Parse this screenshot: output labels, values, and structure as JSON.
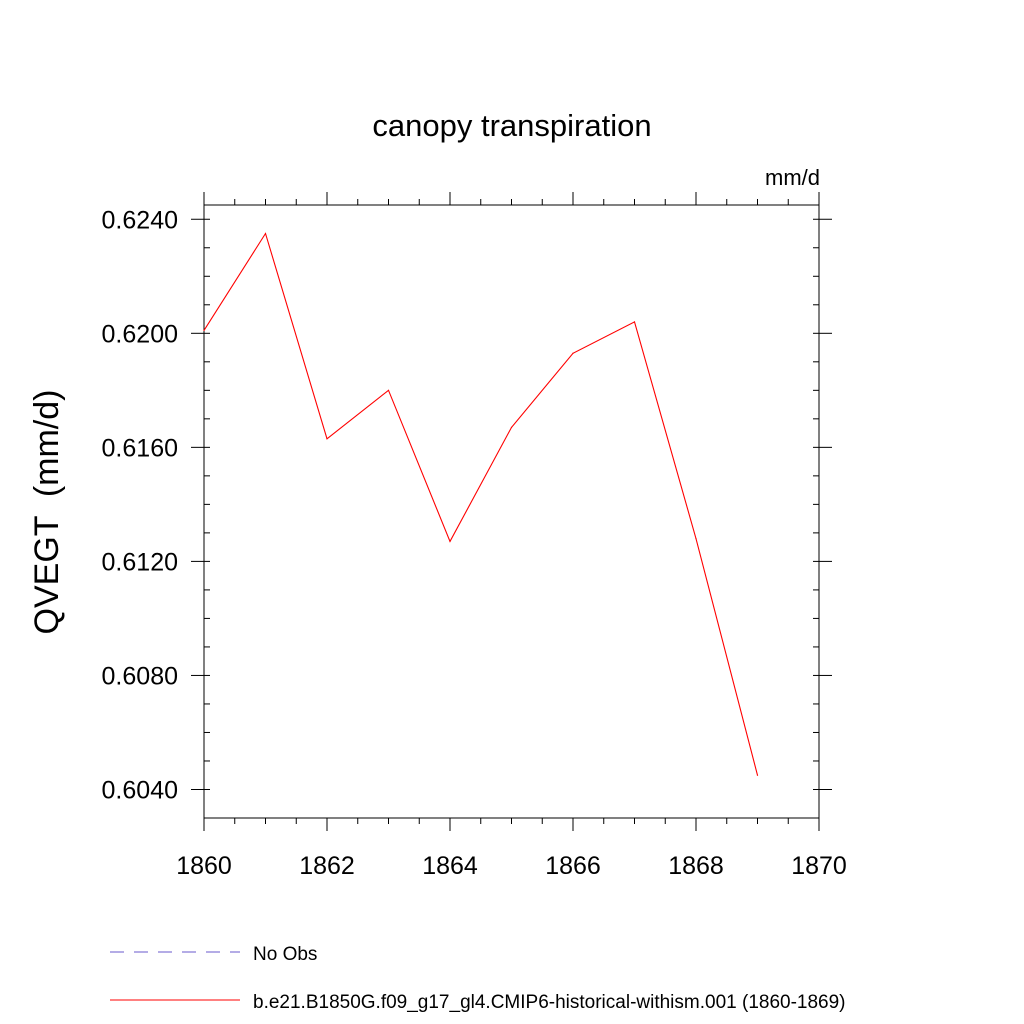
{
  "chart_data": {
    "type": "line",
    "title": "canopy transpiration",
    "units_label": "mm/d",
    "ylabel": "QVEGT  (mm/d)",
    "xlabel": "",
    "xlim": [
      1860,
      1870
    ],
    "ylim": [
      0.603,
      0.6245
    ],
    "x_ticks": [
      "1860",
      "1862",
      "1864",
      "1866",
      "1868",
      "1870"
    ],
    "y_ticks": [
      "0.6040",
      "0.6080",
      "0.6120",
      "0.6160",
      "0.6200",
      "0.6240"
    ],
    "grid": false,
    "legend_position": "bottom-left",
    "series": [
      {
        "name": "No Obs",
        "color": "#6a5acd",
        "dash": "dashed",
        "x": [],
        "values": []
      },
      {
        "name": "b.e21.B1850G.f09_g17_gl4.CMIP6-historical-withism.001 (1860-1869)",
        "color": "#ff0000",
        "dash": "solid",
        "x": [
          1860,
          1861,
          1862,
          1863,
          1864,
          1865,
          1866,
          1867,
          1868,
          1869
        ],
        "values": [
          0.6201,
          0.6235,
          0.6163,
          0.618,
          0.6127,
          0.6167,
          0.6193,
          0.6204,
          0.6128,
          0.6045
        ]
      }
    ]
  }
}
